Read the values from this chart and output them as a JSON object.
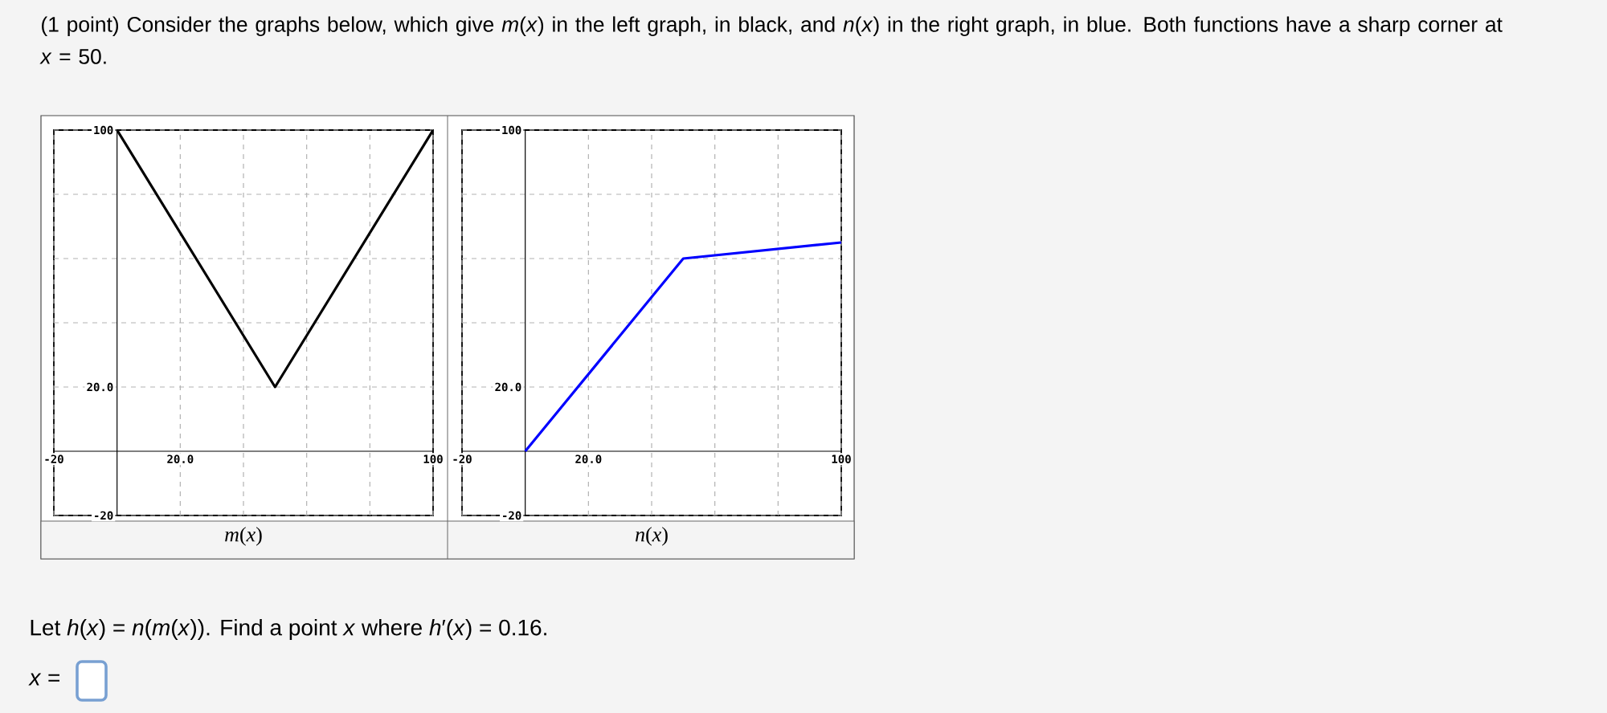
{
  "chart_data": [
    {
      "type": "line",
      "xlabel": "*m*(*x*)",
      "x": [
        0,
        50,
        100
      ],
      "series": [
        {
          "color": "#000000",
          "values": [
            100,
            20,
            100
          ]
        }
      ],
      "xlim": [
        -20,
        100
      ],
      "ylim": [
        -20,
        100
      ],
      "xticks": [
        -20,
        {
          "value": 0,
          "label": null
        },
        {
          "value": 20,
          "label": "20.0"
        },
        {
          "value": 40,
          "label": null
        },
        {
          "value": 60,
          "label": null
        },
        {
          "value": 80,
          "label": null
        },
        100
      ],
      "yticks": [
        -20,
        {
          "value": 0,
          "label": null
        },
        {
          "value": 20,
          "label": "20.0"
        },
        {
          "value": 40,
          "label": null
        },
        {
          "value": 60,
          "label": null
        },
        {
          "value": 80,
          "label": null
        },
        100
      ],
      "grid": true,
      "annotations": [
        "(1 point) Consider the graphs below, which give *m*(*x*) in the left graph, in black, and *n*(*x*) in the right graph, in blue. Both functions have a sharp corner at *x* = 50.",
        "Let *h*(*x*) = *n*(*m*(*x*)). Find a point *x* where *h*′(*x*) = 0.16.",
        "*x* ="
      ]
    },
    {
      "type": "line",
      "xlabel": "*n*(*x*)",
      "x": [
        0,
        50,
        100
      ],
      "series": [
        {
          "color": "#0000ff",
          "values": [
            0,
            60,
            65
          ]
        }
      ],
      "xlim": [
        -20,
        100
      ],
      "ylim": [
        -20,
        100
      ],
      "xticks": [
        -20,
        {
          "value": 0,
          "label": null
        },
        {
          "value": 20,
          "label": "20.0"
        },
        {
          "value": 40,
          "label": null
        },
        {
          "value": 60,
          "label": null
        },
        {
          "value": 80,
          "label": null
        },
        100
      ],
      "yticks": [
        -20,
        {
          "value": 0,
          "label": null
        },
        {
          "value": 20,
          "label": "20.0"
        },
        {
          "value": 40,
          "label": null
        },
        {
          "value": 60,
          "label": null
        },
        {
          "value": 80,
          "label": null
        },
        100
      ],
      "grid": true
    }
  ]
}
